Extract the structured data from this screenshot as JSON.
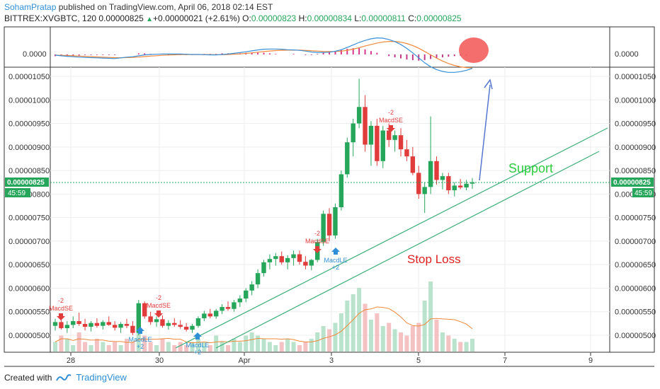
{
  "header": {
    "author": "SohamPratap",
    "published": "published on TradingView.com, April 06, 2018 02:14 EST",
    "symbol": "BITTREX:XVGBTC, 120",
    "last": "0.00000825",
    "change_arrow": "▲",
    "change": "+0.00000021 (+2.61%)",
    "o_label": "O:",
    "o": "0.00000823",
    "h_label": "H:",
    "h": "0.00000834",
    "l_label": "L:",
    "l": "0.00000811",
    "c_label": "C:",
    "c": "0.00000825"
  },
  "footer": {
    "created_with": "Created with",
    "brand": "TradingView"
  },
  "annotations": {
    "support": "Support",
    "stop_loss": "Stop Loss"
  },
  "badges": {
    "price": "0.00000825",
    "timer": "45:59"
  },
  "colors": {
    "up": "#26a65b",
    "down": "#e03c3c",
    "support_text": "#2ecc40",
    "stop_loss_text": "#e02020",
    "trendline": "#3db07a",
    "target_arrow": "#5577cc",
    "macd_line": "#3a8fd6",
    "signal_line": "#f0883a",
    "highlight_circle": "#f25555"
  },
  "macd_panel": {
    "tick": "0.0000"
  },
  "signals": [
    {
      "label": "MacdSE",
      "qty": "-2",
      "type": "short",
      "x_date": "Mar 28"
    },
    {
      "label": "MacdLE",
      "qty": "+2",
      "type": "long",
      "x_date": "Mar 29"
    },
    {
      "label": "MacdSE",
      "qty": "-2",
      "type": "short",
      "x_date": "Mar 29"
    },
    {
      "label": "MacdLE",
      "qty": "+2",
      "type": "long",
      "x_date": "Mar 30"
    },
    {
      "label": "MacdSE",
      "qty": "-2",
      "type": "short",
      "x_date": "Apr 2"
    },
    {
      "label": "MacdLE",
      "qty": "+2",
      "type": "long",
      "x_date": "Apr 3"
    },
    {
      "label": "MacdSE",
      "qty": "-2",
      "type": "short",
      "x_date": "Apr 4"
    }
  ],
  "chart_data": {
    "type": "candlestick",
    "title": "BITTREX:XVGBTC, 120",
    "x_tick_labels": [
      "28",
      "30",
      "Apr",
      "3",
      "5",
      "7",
      "9"
    ],
    "y_tick_labels": [
      "0.00001050",
      "0.00001000",
      "0.00000950",
      "0.00000900",
      "0.00000850",
      "0.00000800",
      "0.00000750",
      "0.00000700",
      "0.00000650",
      "0.00000600",
      "0.00000550",
      "0.00000500"
    ],
    "ylim": [
      4.65e-06,
      1.07e-05
    ],
    "current_price": 8.25e-06,
    "candles": [
      [
        5.2e-06,
        5.35e-06,
        5.1e-06,
        5.28e-06
      ],
      [
        5.28e-06,
        5.45e-06,
        5.12e-06,
        5.15e-06
      ],
      [
        5.15e-06,
        5.3e-06,
        5.05e-06,
        5.22e-06
      ],
      [
        5.22e-06,
        5.4e-06,
        5.15e-06,
        5.3e-06
      ],
      [
        5.3e-06,
        5.48e-06,
        5.2e-06,
        5.24e-06
      ],
      [
        5.24e-06,
        5.35e-06,
        5.1e-06,
        5.18e-06
      ],
      [
        5.18e-06,
        5.3e-06,
        5.08e-06,
        5.26e-06
      ],
      [
        5.26e-06,
        5.36e-06,
        5.16e-06,
        5.2e-06
      ],
      [
        5.2e-06,
        5.32e-06,
        5.12e-06,
        5.28e-06
      ],
      [
        5.28e-06,
        5.4e-06,
        5.2e-06,
        5.22e-06
      ],
      [
        5.22e-06,
        5.3e-06,
        5.1e-06,
        5.16e-06
      ],
      [
        5.16e-06,
        5.28e-06,
        5.05e-06,
        5.24e-06
      ],
      [
        5.24e-06,
        5.35e-06,
        5.15e-06,
        5.2e-06
      ],
      [
        5.2e-06,
        5.3e-06,
        5e-06,
        5.05e-06
      ],
      [
        5.05e-06,
        5.75e-06,
        5e-06,
        5.68e-06
      ],
      [
        5.68e-06,
        5.72e-06,
        5.35e-06,
        5.4e-06
      ],
      [
        5.4e-06,
        5.5e-06,
        5.22e-06,
        5.28e-06
      ],
      [
        5.28e-06,
        5.4e-06,
        5.18e-06,
        5.34e-06
      ],
      [
        5.34e-06,
        5.42e-06,
        5.16e-06,
        5.2e-06
      ],
      [
        5.2e-06,
        5.32e-06,
        5.12e-06,
        5.26e-06
      ],
      [
        5.26e-06,
        5.36e-06,
        5.18e-06,
        5.22e-06
      ],
      [
        5.22e-06,
        5.32e-06,
        5.14e-06,
        5.18e-06
      ],
      [
        5.18e-06,
        5.26e-06,
        5.08e-06,
        5.12e-06
      ],
      [
        5.12e-06,
        5.24e-06,
        5.05e-06,
        5.2e-06
      ],
      [
        5.2e-06,
        5.4e-06,
        5.16e-06,
        5.36e-06
      ],
      [
        5.36e-06,
        5.52e-06,
        5.3e-06,
        5.46e-06
      ],
      [
        5.46e-06,
        5.56e-06,
        5.36e-06,
        5.4e-06
      ],
      [
        5.4e-06,
        5.56e-06,
        5.35e-06,
        5.52e-06
      ],
      [
        5.52e-06,
        5.66e-06,
        5.45e-06,
        5.6e-06
      ],
      [
        5.6e-06,
        5.72e-06,
        5.52e-06,
        5.56e-06
      ],
      [
        5.56e-06,
        5.75e-06,
        5.5e-06,
        5.7e-06
      ],
      [
        5.7e-06,
        5.85e-06,
        5.6e-06,
        5.78e-06
      ],
      [
        5.78e-06,
        6e-06,
        5.7e-06,
        5.95e-06
      ],
      [
        5.95e-06,
        6.15e-06,
        5.85e-06,
        6.08e-06
      ],
      [
        6.08e-06,
        6.4e-06,
        6e-06,
        6.32e-06
      ],
      [
        6.32e-06,
        6.6e-06,
        6.25e-06,
        6.55e-06
      ],
      [
        6.55e-06,
        6.72e-06,
        6.4e-06,
        6.62e-06
      ],
      [
        6.62e-06,
        6.75e-06,
        6.48e-06,
        6.68e-06
      ],
      [
        6.68e-06,
        6.78e-06,
        6.5e-06,
        6.55e-06
      ],
      [
        6.55e-06,
        6.7e-06,
        6.4e-06,
        6.64e-06
      ],
      [
        6.64e-06,
        6.8e-06,
        6.48e-06,
        6.72e-06
      ],
      [
        6.72e-06,
        6.8e-06,
        6.5e-06,
        6.56e-06
      ],
      [
        6.56e-06,
        6.68e-06,
        6.4e-06,
        6.48e-06
      ],
      [
        6.48e-06,
        6.62e-06,
        6.38e-06,
        6.6e-06
      ],
      [
        6.6e-06,
        7.05e-06,
        6.55e-06,
        6.98e-06
      ],
      [
        6.98e-06,
        7.65e-06,
        6.9e-06,
        7.58e-06
      ],
      [
        7.58e-06,
        7.7e-06,
        7e-06,
        7.12e-06
      ],
      [
        7.12e-06,
        7.8e-06,
        7.05e-06,
        7.72e-06
      ],
      [
        7.72e-06,
        8.5e-06,
        7.65e-06,
        8.42e-06
      ],
      [
        8.42e-06,
        9.2e-06,
        8.35e-06,
        9.1e-06
      ],
      [
        9.1e-06,
        9.6e-06,
        8.8e-06,
        9.5e-06
      ],
      [
        9.5e-06,
        1.045e-05,
        9.4e-06,
        9.85e-06
      ],
      [
        9.85e-06,
        1.01e-05,
        8.9e-06,
        9.05e-06
      ],
      [
        9.05e-06,
        9.55e-06,
        8.6e-06,
        9.45e-06
      ],
      [
        9.45e-06,
        9.6e-06,
        8.6e-06,
        8.7e-06
      ],
      [
        8.7e-06,
        9.45e-06,
        8.55e-06,
        9.35e-06
      ],
      [
        9.35e-06,
        9.5e-06,
        9e-06,
        9.15e-06
      ],
      [
        9.15e-06,
        9.35e-06,
        8.9e-06,
        9.25e-06
      ],
      [
        9.25e-06,
        9.4e-06,
        8.8e-06,
        8.95e-06
      ],
      [
        8.95e-06,
        9.15e-06,
        8.7e-06,
        8.8e-06
      ],
      [
        8.8e-06,
        9e-06,
        8.4e-06,
        8.45e-06
      ],
      [
        8.45e-06,
        8.6e-06,
        7.9e-06,
        8e-06
      ],
      [
        8e-06,
        8.25e-06,
        7.6e-06,
        8.15e-06
      ],
      [
        8.15e-06,
        9.65e-06,
        8e-06,
        8.7e-06
      ],
      [
        8.7e-06,
        8.8e-06,
        8.2e-06,
        8.3e-06
      ],
      [
        8.3e-06,
        8.45e-06,
        8.1e-06,
        8.38e-06
      ],
      [
        8.38e-06,
        8.45e-06,
        8e-06,
        8.08e-06
      ],
      [
        8.08e-06,
        8.25e-06,
        7.95e-06,
        8.18e-06
      ],
      [
        8.18e-06,
        8.32e-06,
        8.1e-06,
        8.14e-06
      ],
      [
        8.14e-06,
        8.3e-06,
        8.08e-06,
        8.22e-06
      ],
      [
        8.22e-06,
        8.34e-06,
        8.11e-06,
        8.25e-06
      ]
    ],
    "volumes": [
      3,
      5,
      4,
      2,
      6,
      3,
      2,
      4,
      3,
      2,
      3,
      2,
      4,
      3,
      9,
      5,
      3,
      2,
      4,
      3,
      2,
      3,
      2,
      3,
      4,
      3,
      2,
      5,
      3,
      2,
      4,
      3,
      5,
      6,
      5,
      4,
      3,
      2,
      3,
      4,
      3,
      2,
      3,
      4,
      6,
      8,
      7,
      9,
      12,
      16,
      18,
      20,
      15,
      10,
      12,
      8,
      9,
      7,
      6,
      5,
      8,
      9,
      16,
      22,
      10,
      6,
      5,
      4,
      3,
      3,
      4
    ],
    "macd_hist": [
      -0.3,
      -0.3,
      -0.2,
      -0.2,
      -0.2,
      -0.1,
      -0.1,
      -0.1,
      -0.1,
      -0.1,
      -0.1,
      0,
      0,
      0,
      0.2,
      0.2,
      0.1,
      0,
      0,
      -0.1,
      -0.1,
      -0.1,
      -0.1,
      -0.1,
      0,
      0.1,
      0.1,
      0.1,
      0.2,
      0.2,
      0.2,
      0.2,
      0.3,
      0.3,
      0.3,
      0.3,
      0.2,
      0.1,
      0,
      0,
      0.1,
      0,
      -0.1,
      -0.1,
      0.1,
      0.3,
      0.4,
      0.6,
      0.8,
      1,
      1.1,
      1.2,
      0.9,
      0.6,
      0.3,
      0,
      -0.3,
      -0.5,
      -0.7,
      -0.9,
      -1,
      -1.1,
      -1,
      -0.8,
      -0.7,
      -0.5,
      -0.4,
      -0.3,
      -0.2,
      -0.1,
      0
    ]
  }
}
